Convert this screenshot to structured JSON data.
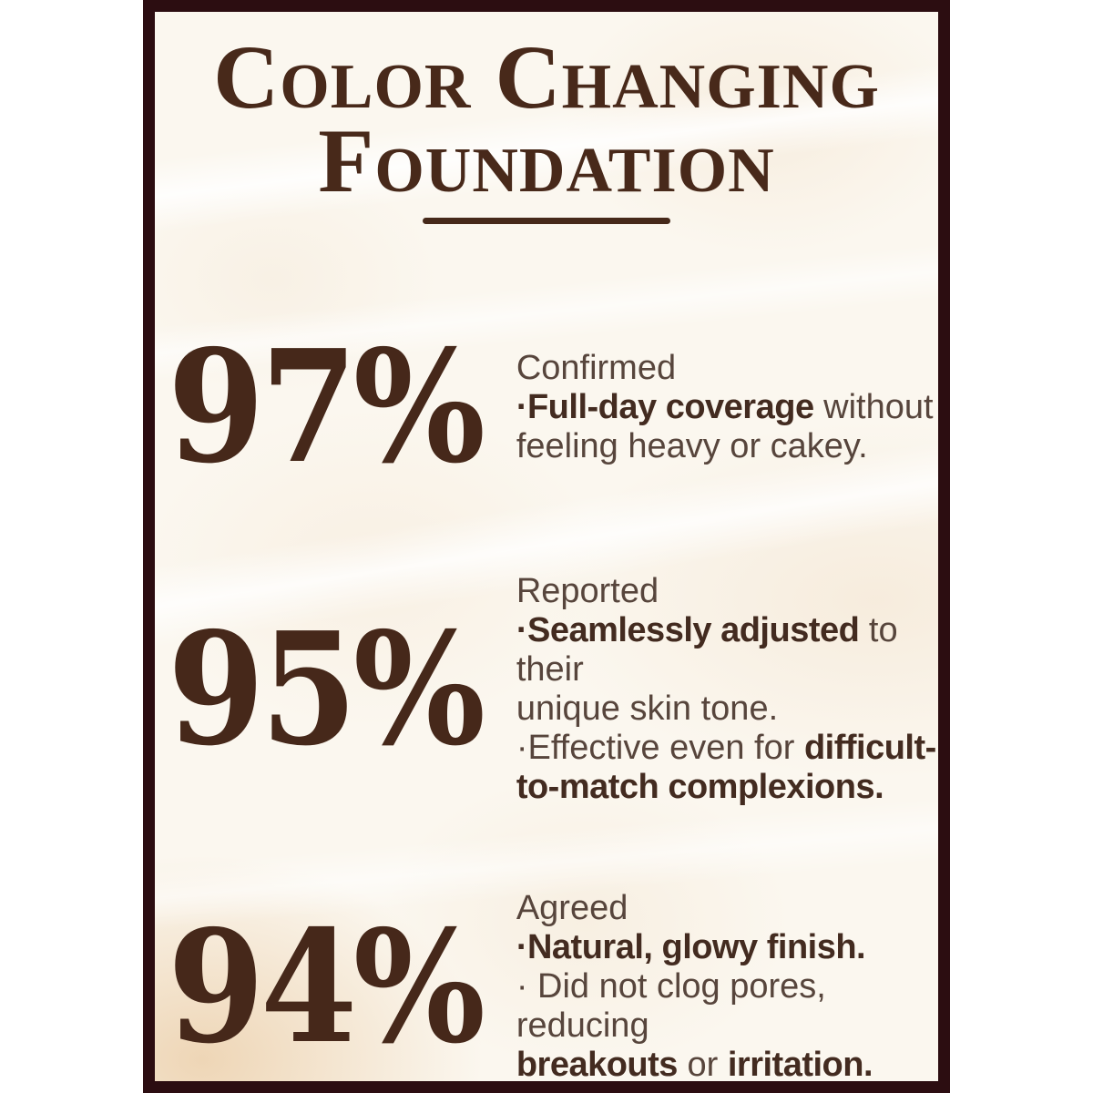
{
  "colors": {
    "page_background": "#ffffff",
    "frame": "#2c0d11",
    "card_background": "#fbf7ef",
    "title": "#48291a",
    "divider": "#46291a",
    "stat_number": "#46281a",
    "text_regular": "#57453c",
    "text_bold": "#432b20"
  },
  "header": {
    "title_line1": "Color Changing",
    "title_line2": "Foundation"
  },
  "stats": [
    {
      "value": "97%",
      "lines": [
        [
          {
            "t": "Confirmed",
            "b": false
          }
        ],
        [
          {
            "t": "·Full-day coverage",
            "b": true
          },
          {
            "t": " without",
            "b": false
          }
        ],
        [
          {
            "t": "feeling heavy or cakey.",
            "b": false
          }
        ]
      ]
    },
    {
      "value": "95%",
      "lines": [
        [
          {
            "t": "Reported",
            "b": false
          }
        ],
        [
          {
            "t": "·Seamlessly adjusted",
            "b": true
          },
          {
            "t": " to their",
            "b": false
          }
        ],
        [
          {
            "t": "unique skin tone.",
            "b": false
          }
        ],
        [
          {
            "t": "·Effective even for ",
            "b": false
          },
          {
            "t": "difficult-",
            "b": true
          }
        ],
        [
          {
            "t": "to-match complexions.",
            "b": true
          }
        ]
      ]
    },
    {
      "value": "94%",
      "lines": [
        [
          {
            "t": "Agreed",
            "b": false
          }
        ],
        [
          {
            "t": "·Natural, glowy finish.",
            "b": true
          }
        ],
        [
          {
            "t": "· Did not clog pores, reducing",
            "b": false
          }
        ],
        [
          {
            "t": "breakouts",
            "b": true
          },
          {
            "t": " or ",
            "b": false
          },
          {
            "t": "irritation.",
            "b": true
          }
        ]
      ]
    }
  ]
}
